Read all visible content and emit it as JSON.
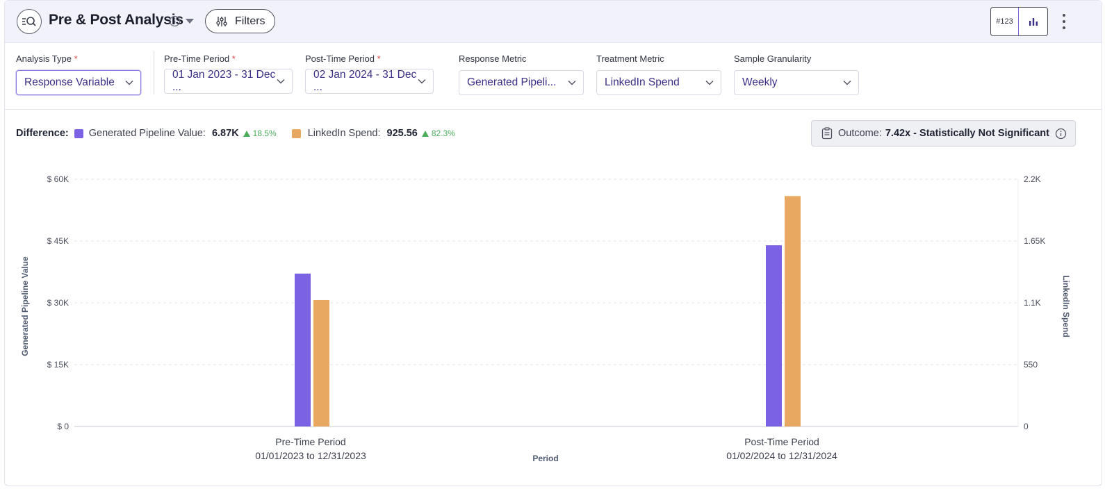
{
  "header": {
    "title": "Pre & Post Analysis",
    "filters_label": "Filters",
    "toggle_number_label": "#123"
  },
  "filters": {
    "analysis_type": {
      "label": "Analysis Type",
      "required": "*",
      "value": "Response Variable"
    },
    "pre_period": {
      "label": "Pre-Time Period",
      "required": "*",
      "value": "01 Jan 2023 - 31 Dec ..."
    },
    "post_period": {
      "label": "Post-Time Period",
      "required": "*",
      "value": "02 Jan 2024 - 31 Dec ..."
    },
    "response_metric": {
      "label": "Response Metric",
      "value": "Generated Pipeli..."
    },
    "treatment_metric": {
      "label": "Treatment Metric",
      "value": "LinkedIn Spend"
    },
    "granularity": {
      "label": "Sample Granularity",
      "value": "Weekly"
    }
  },
  "difference": {
    "label": "Difference:",
    "response_name": "Generated Pipeline Value:",
    "response_value": "6.87K",
    "response_change": "18.5%",
    "treatment_name": "LinkedIn Spend:",
    "treatment_value": "925.56",
    "treatment_change": "82.3%"
  },
  "outcome": {
    "label": "Outcome:",
    "value": "7.42x - Statistically Not Significant"
  },
  "colors": {
    "response": "#7b61e4",
    "treatment": "#e8a862",
    "accent": "#7c62d6"
  },
  "chart_data": {
    "type": "bar",
    "categories": [
      "Pre-Time Period",
      "Post-Time Period"
    ],
    "category_sublabels": [
      "01/01/2023 to 12/31/2023",
      "01/02/2024 to 12/31/2024"
    ],
    "xlabel": "Period",
    "ylabel_left": "Generated Pipeline Value",
    "ylabel_right": "LinkedIn Spend",
    "ylim_left": [
      0,
      60000
    ],
    "ylim_right": [
      0,
      2200
    ],
    "left_ticks": [
      "$ 0",
      "$ 15K",
      "$ 30K",
      "$ 45K",
      "$ 60K"
    ],
    "right_ticks": [
      "0",
      "550",
      "1.1K",
      "1.65K",
      "2.2K"
    ],
    "series": [
      {
        "name": "Generated Pipeline Value",
        "axis": "left",
        "values": [
          37100,
          43970
        ]
      },
      {
        "name": "LinkedIn Spend",
        "axis": "right",
        "values": [
          1125,
          2050
        ]
      }
    ]
  }
}
